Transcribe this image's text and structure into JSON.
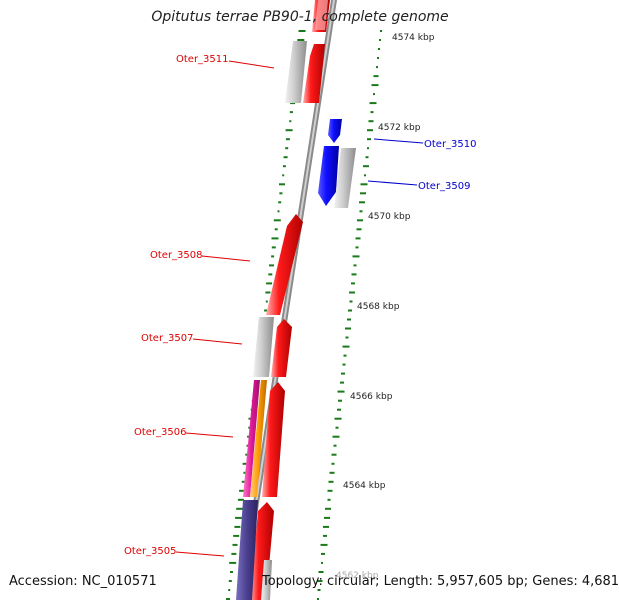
{
  "header": {
    "title": "Opitutus terrae PB90-1, complete genome"
  },
  "footer": {
    "accession": "Accession: NC_010571",
    "summary": "Topology: circular; Length: 5,957,605 bp; Genes: 4,681"
  },
  "scale": {
    "unit": "kbp",
    "ticks": [
      {
        "label": "4574 kbp",
        "kbp": 4574
      },
      {
        "label": "4572 kbp",
        "kbp": 4572
      },
      {
        "label": "4570 kbp",
        "kbp": 4570
      },
      {
        "label": "4568 kbp",
        "kbp": 4568
      },
      {
        "label": "4566 kbp",
        "kbp": 4566
      },
      {
        "label": "4564 kbp",
        "kbp": 4564
      },
      {
        "label": "4562 kbp",
        "kbp": 4562
      }
    ]
  },
  "genes": [
    {
      "label": "Oter_3511",
      "color": "#dd0000"
    },
    {
      "label": "Oter_3510",
      "color": "#0000cc"
    },
    {
      "label": "Oter_3509",
      "color": "#0000cc"
    },
    {
      "label": "Oter_3508",
      "color": "#dd0000"
    },
    {
      "label": "Oter_3507",
      "color": "#dd0000"
    },
    {
      "label": "Oter_3506",
      "color": "#dd0000"
    },
    {
      "label": "Oter_3505",
      "color": "#dd0000"
    }
  ],
  "colors": {
    "forward_cds": "#ff0000",
    "reverse_cds": "#0000ff",
    "pseudo_or_rna": "#c0c0c0",
    "magenta_feature": "#e0189a",
    "orange_feature": "#ff9900",
    "purple_feature": "#4a3f8f",
    "gc_skew_marks": "#1a7a1a",
    "backbone": "#8a8a8a"
  }
}
